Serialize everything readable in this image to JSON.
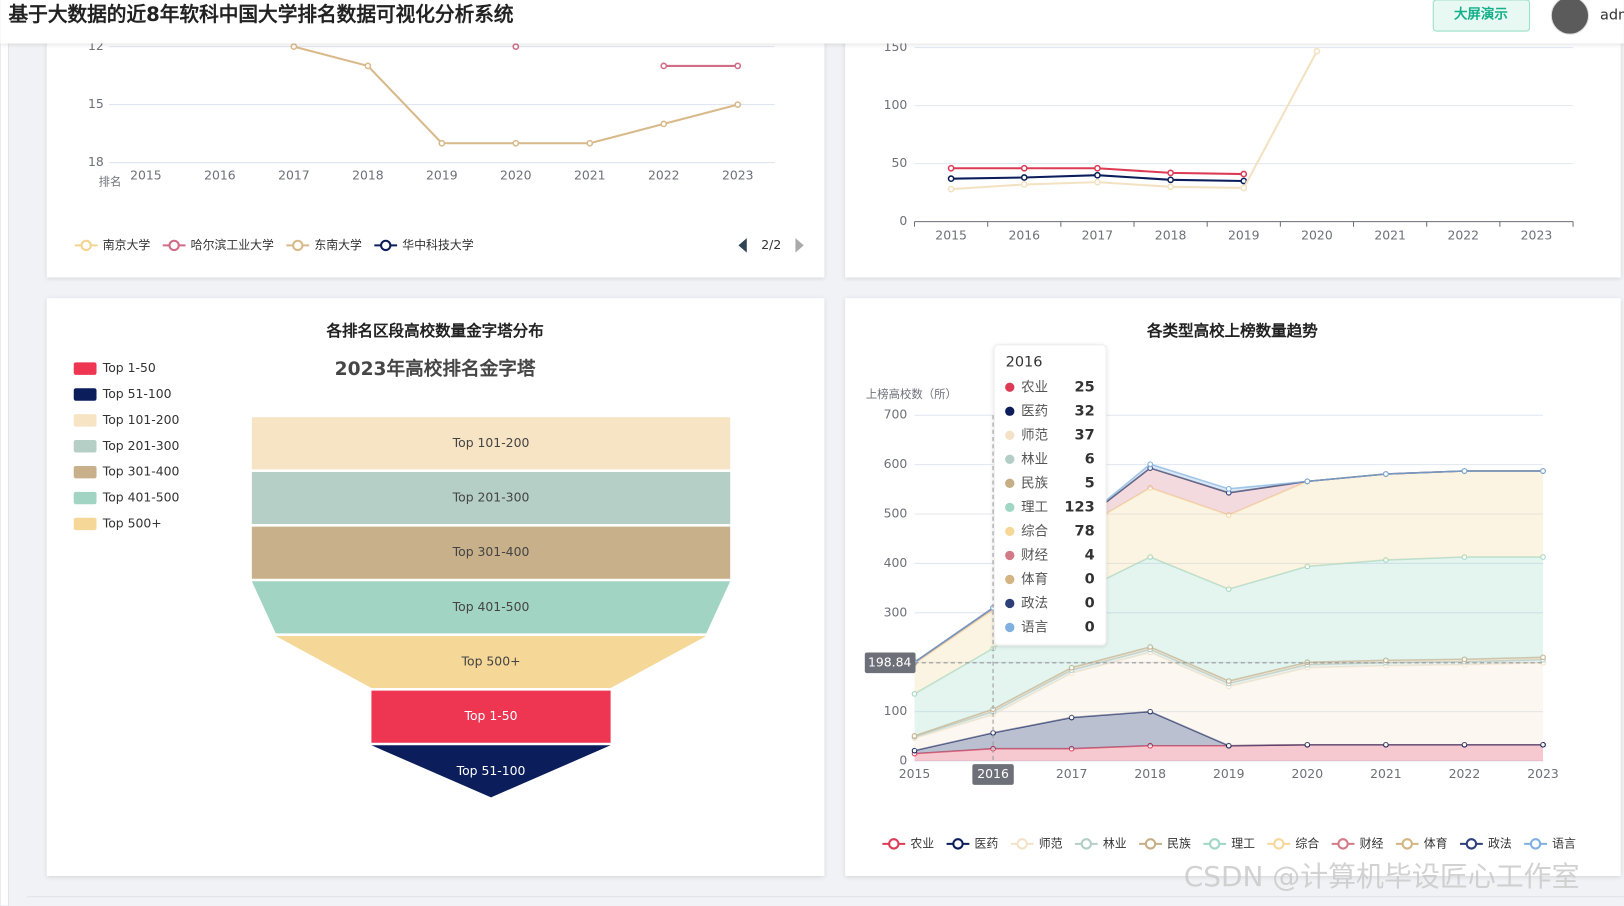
{
  "header": {
    "title": "基于大数据的近8年软科中国大学排名数据可视化分析系统",
    "button": "大屏演示",
    "user": "adm"
  },
  "watermark": "CSDN @计算机毕设匠心工作室",
  "chart_data": [
    {
      "type": "line",
      "y_label": "排名",
      "y_inverted": true,
      "x": [
        "2015",
        "2016",
        "2017",
        "2018",
        "2019",
        "2020",
        "2021",
        "2022",
        "2023"
      ],
      "ylim": [
        12,
        18
      ],
      "yticks": [
        12,
        15,
        18
      ],
      "grid": true,
      "series": [
        {
          "name": "南京大学",
          "color": "#f3d38f",
          "values": [
            null,
            null,
            null,
            null,
            null,
            null,
            null,
            null,
            null
          ]
        },
        {
          "name": "哈尔滨工业大学",
          "color": "#d06c86",
          "values": [
            null,
            null,
            null,
            null,
            null,
            12,
            null,
            13,
            13
          ]
        },
        {
          "name": "东南大学",
          "color": "#d9b98a",
          "values": [
            null,
            null,
            12,
            13,
            17,
            17,
            17,
            16,
            15
          ]
        },
        {
          "name": "华中科技大学",
          "color": "#0b1e5b",
          "values": [
            null,
            null,
            null,
            null,
            null,
            null,
            null,
            null,
            null
          ]
        }
      ],
      "legend_page": "2/2"
    },
    {
      "type": "line",
      "x": [
        "2015",
        "2016",
        "2017",
        "2018",
        "2019",
        "2020",
        "2021",
        "2022",
        "2023"
      ],
      "ylim": [
        0,
        150
      ],
      "yticks": [
        0,
        50,
        100,
        150
      ],
      "grid": true,
      "series": [
        {
          "color": "#dd3b55",
          "values": [
            46,
            46,
            46,
            42,
            41,
            null,
            null,
            null,
            null
          ]
        },
        {
          "color": "#0b1e5b",
          "values": [
            37,
            38,
            40,
            36,
            35,
            null,
            null,
            null,
            null
          ]
        },
        {
          "color": "#f3e2c2",
          "values": [
            28,
            32,
            34,
            30,
            29,
            147,
            null,
            null,
            null
          ]
        }
      ]
    },
    {
      "type": "funnel",
      "title": "各排名区段高校数量金字塔分布",
      "subtitle": "2023年高校排名金字塔",
      "categories": [
        "Top 1-50",
        "Top 51-100",
        "Top 101-200",
        "Top 201-300",
        "Top 301-400",
        "Top 401-500",
        "Top 500+"
      ],
      "values": [
        50,
        50,
        100,
        100,
        100,
        100,
        90
      ],
      "colors": [
        "#ee3552",
        "#0b1e5b",
        "#f6e4c4",
        "#b5cfc7",
        "#c8b08a",
        "#a2d4c3",
        "#f5d797"
      ]
    },
    {
      "type": "stacked_area",
      "title": "各类型高校上榜数量趋势",
      "y_label": "上榜高校数（所）",
      "x": [
        "2015",
        "2016",
        "2017",
        "2018",
        "2019",
        "2020",
        "2021",
        "2022",
        "2023"
      ],
      "ylim": [
        0,
        700
      ],
      "yticks": [
        0,
        100,
        200,
        300,
        400,
        500,
        600,
        700
      ],
      "grid": true,
      "series": [
        {
          "name": "农业",
          "color": "#dd3b55",
          "values": [
            15,
            25,
            25,
            31,
            31,
            33,
            33,
            33,
            33
          ]
        },
        {
          "name": "医药",
          "color": "#0b1e5b",
          "values": [
            6,
            32,
            63,
            69,
            0,
            0,
            0,
            0,
            0
          ]
        },
        {
          "name": "师范",
          "color": "#f3e2c8",
          "values": [
            25,
            37,
            90,
            120,
            120,
            156,
            160,
            162,
            166
          ]
        },
        {
          "name": "林业",
          "color": "#b2cec6",
          "values": [
            3,
            6,
            6,
            6,
            6,
            6,
            6,
            6,
            6
          ]
        },
        {
          "name": "民族",
          "color": "#c6ae86",
          "values": [
            2,
            5,
            5,
            5,
            5,
            5,
            5,
            5,
            5
          ]
        },
        {
          "name": "理工",
          "color": "#9fd6c4",
          "values": [
            85,
            123,
            146,
            182,
            186,
            194,
            203,
            207,
            203
          ]
        },
        {
          "name": "综合",
          "color": "#f6d797",
          "values": [
            61,
            78,
            125,
            140,
            150,
            172,
            174,
            174,
            174
          ]
        },
        {
          "name": "财经",
          "color": "#d27a87",
          "values": [
            3,
            4,
            10,
            40,
            45,
            0,
            0,
            0,
            0
          ]
        },
        {
          "name": "体育",
          "color": "#d4b483",
          "values": [
            0,
            0,
            0,
            0,
            0,
            0,
            0,
            0,
            0
          ]
        },
        {
          "name": "政法",
          "color": "#2e3f7a",
          "values": [
            0,
            0,
            0,
            0,
            0,
            0,
            0,
            0,
            0
          ]
        },
        {
          "name": "语言",
          "color": "#7fb0e0",
          "values": [
            0,
            0,
            0,
            8,
            8,
            0,
            0,
            0,
            0
          ]
        }
      ],
      "axis_pointer": {
        "x": "2016",
        "y": 198.84
      }
    }
  ]
}
